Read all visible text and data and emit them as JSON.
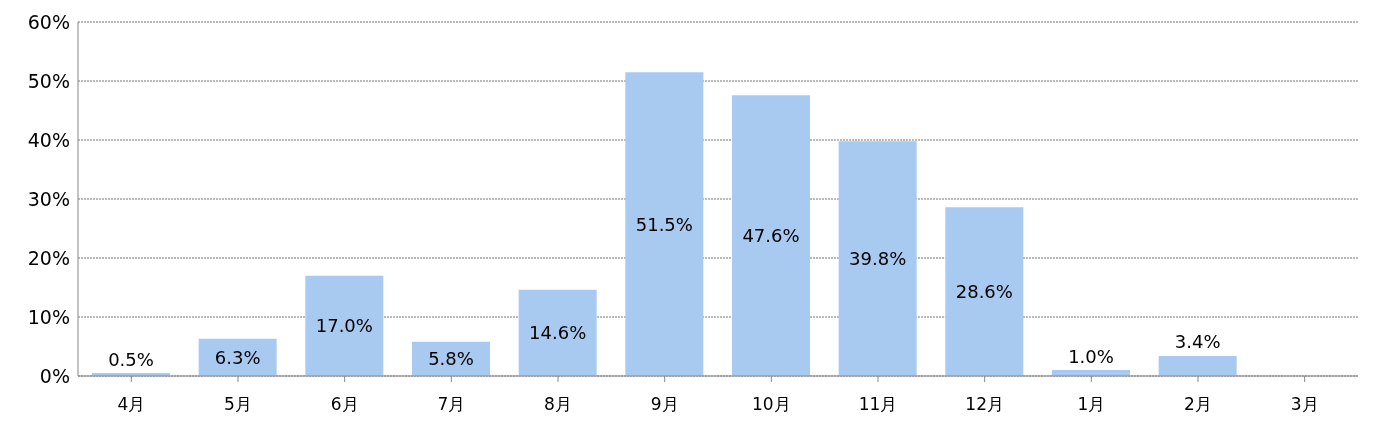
{
  "chart_data": {
    "type": "bar",
    "categories": [
      "4月",
      "5月",
      "6月",
      "7月",
      "8月",
      "9月",
      "10月",
      "11月",
      "12月",
      "1月",
      "2月",
      "3月"
    ],
    "values": [
      0.5,
      6.3,
      17.0,
      5.8,
      14.6,
      51.5,
      47.6,
      39.8,
      28.6,
      1.0,
      3.4,
      null
    ],
    "value_labels": [
      "0.5%",
      "6.3%",
      "17.0%",
      "5.8%",
      "14.6%",
      "51.5%",
      "47.6%",
      "39.8%",
      "28.6%",
      "1.0%",
      "3.4%",
      null
    ],
    "color": "#a9caf0",
    "grid": "y",
    "legend": false,
    "ylim": [
      0,
      60
    ],
    "yticks": [
      {
        "value": 0,
        "label": "0%"
      },
      {
        "value": 10,
        "label": "10%"
      },
      {
        "value": 20,
        "label": "20%"
      },
      {
        "value": 30,
        "label": "30%"
      },
      {
        "value": 40,
        "label": "40%"
      },
      {
        "value": 50,
        "label": "50%"
      },
      {
        "value": 60,
        "label": "60%"
      }
    ]
  }
}
